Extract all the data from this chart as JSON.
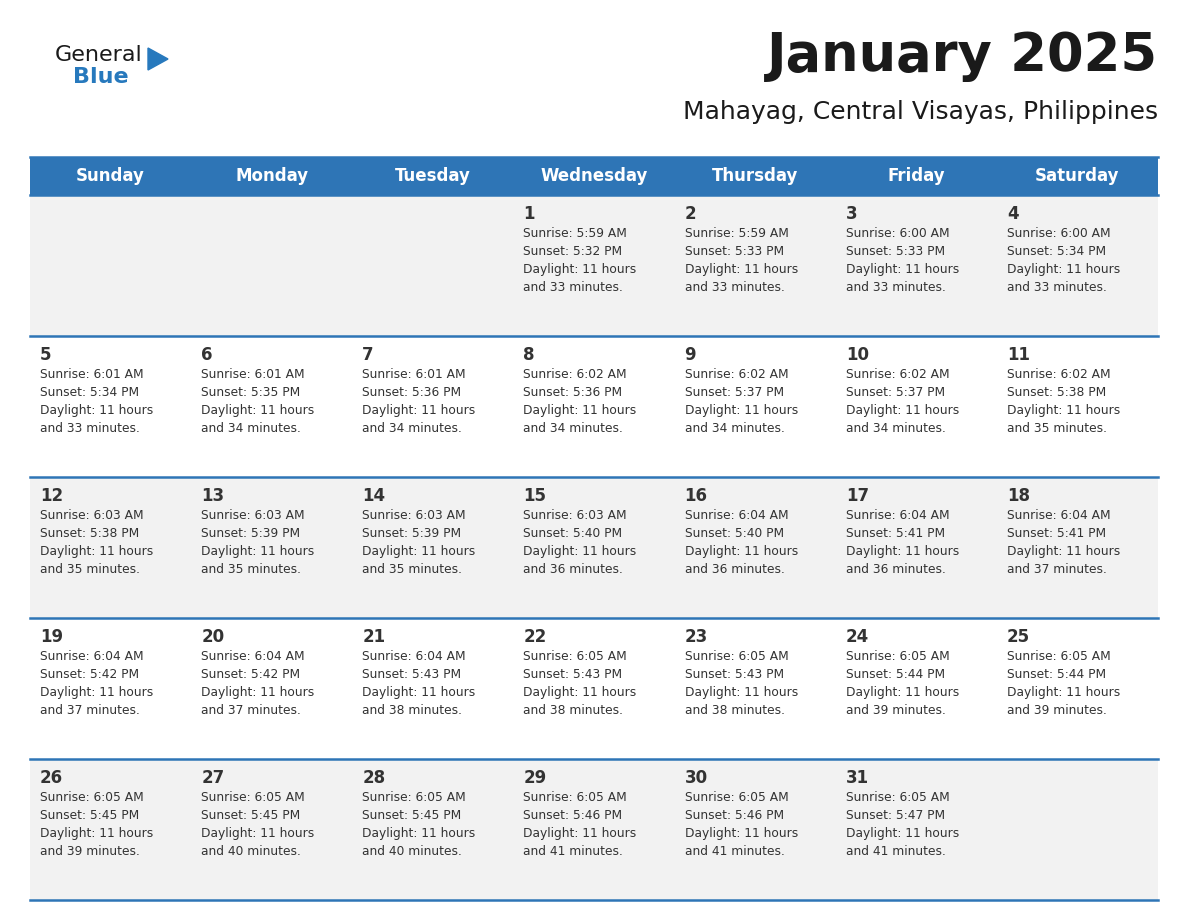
{
  "title": "January 2025",
  "subtitle": "Mahayag, Central Visayas, Philippines",
  "days_of_week": [
    "Sunday",
    "Monday",
    "Tuesday",
    "Wednesday",
    "Thursday",
    "Friday",
    "Saturday"
  ],
  "header_bg": "#2E75B6",
  "header_text_color": "#FFFFFF",
  "cell_bg_odd": "#F2F2F2",
  "cell_bg_even": "#FFFFFF",
  "separator_color": "#2E75B6",
  "title_color": "#1a1a1a",
  "subtitle_color": "#1a1a1a",
  "text_color": "#333333",
  "logo_black_color": "#1a1a1a",
  "logo_blue_color": "#2779BD",
  "calendar_data": [
    [
      null,
      null,
      null,
      {
        "day": 1,
        "sunrise": "5:59 AM",
        "sunset": "5:32 PM",
        "daylight": "11 hours and 33 minutes"
      },
      {
        "day": 2,
        "sunrise": "5:59 AM",
        "sunset": "5:33 PM",
        "daylight": "11 hours and 33 minutes"
      },
      {
        "day": 3,
        "sunrise": "6:00 AM",
        "sunset": "5:33 PM",
        "daylight": "11 hours and 33 minutes"
      },
      {
        "day": 4,
        "sunrise": "6:00 AM",
        "sunset": "5:34 PM",
        "daylight": "11 hours and 33 minutes"
      }
    ],
    [
      {
        "day": 5,
        "sunrise": "6:01 AM",
        "sunset": "5:34 PM",
        "daylight": "11 hours and 33 minutes"
      },
      {
        "day": 6,
        "sunrise": "6:01 AM",
        "sunset": "5:35 PM",
        "daylight": "11 hours and 34 minutes"
      },
      {
        "day": 7,
        "sunrise": "6:01 AM",
        "sunset": "5:36 PM",
        "daylight": "11 hours and 34 minutes"
      },
      {
        "day": 8,
        "sunrise": "6:02 AM",
        "sunset": "5:36 PM",
        "daylight": "11 hours and 34 minutes"
      },
      {
        "day": 9,
        "sunrise": "6:02 AM",
        "sunset": "5:37 PM",
        "daylight": "11 hours and 34 minutes"
      },
      {
        "day": 10,
        "sunrise": "6:02 AM",
        "sunset": "5:37 PM",
        "daylight": "11 hours and 34 minutes"
      },
      {
        "day": 11,
        "sunrise": "6:02 AM",
        "sunset": "5:38 PM",
        "daylight": "11 hours and 35 minutes"
      }
    ],
    [
      {
        "day": 12,
        "sunrise": "6:03 AM",
        "sunset": "5:38 PM",
        "daylight": "11 hours and 35 minutes"
      },
      {
        "day": 13,
        "sunrise": "6:03 AM",
        "sunset": "5:39 PM",
        "daylight": "11 hours and 35 minutes"
      },
      {
        "day": 14,
        "sunrise": "6:03 AM",
        "sunset": "5:39 PM",
        "daylight": "11 hours and 35 minutes"
      },
      {
        "day": 15,
        "sunrise": "6:03 AM",
        "sunset": "5:40 PM",
        "daylight": "11 hours and 36 minutes"
      },
      {
        "day": 16,
        "sunrise": "6:04 AM",
        "sunset": "5:40 PM",
        "daylight": "11 hours and 36 minutes"
      },
      {
        "day": 17,
        "sunrise": "6:04 AM",
        "sunset": "5:41 PM",
        "daylight": "11 hours and 36 minutes"
      },
      {
        "day": 18,
        "sunrise": "6:04 AM",
        "sunset": "5:41 PM",
        "daylight": "11 hours and 37 minutes"
      }
    ],
    [
      {
        "day": 19,
        "sunrise": "6:04 AM",
        "sunset": "5:42 PM",
        "daylight": "11 hours and 37 minutes"
      },
      {
        "day": 20,
        "sunrise": "6:04 AM",
        "sunset": "5:42 PM",
        "daylight": "11 hours and 37 minutes"
      },
      {
        "day": 21,
        "sunrise": "6:04 AM",
        "sunset": "5:43 PM",
        "daylight": "11 hours and 38 minutes"
      },
      {
        "day": 22,
        "sunrise": "6:05 AM",
        "sunset": "5:43 PM",
        "daylight": "11 hours and 38 minutes"
      },
      {
        "day": 23,
        "sunrise": "6:05 AM",
        "sunset": "5:43 PM",
        "daylight": "11 hours and 38 minutes"
      },
      {
        "day": 24,
        "sunrise": "6:05 AM",
        "sunset": "5:44 PM",
        "daylight": "11 hours and 39 minutes"
      },
      {
        "day": 25,
        "sunrise": "6:05 AM",
        "sunset": "5:44 PM",
        "daylight": "11 hours and 39 minutes"
      }
    ],
    [
      {
        "day": 26,
        "sunrise": "6:05 AM",
        "sunset": "5:45 PM",
        "daylight": "11 hours and 39 minutes"
      },
      {
        "day": 27,
        "sunrise": "6:05 AM",
        "sunset": "5:45 PM",
        "daylight": "11 hours and 40 minutes"
      },
      {
        "day": 28,
        "sunrise": "6:05 AM",
        "sunset": "5:45 PM",
        "daylight": "11 hours and 40 minutes"
      },
      {
        "day": 29,
        "sunrise": "6:05 AM",
        "sunset": "5:46 PM",
        "daylight": "11 hours and 41 minutes"
      },
      {
        "day": 30,
        "sunrise": "6:05 AM",
        "sunset": "5:46 PM",
        "daylight": "11 hours and 41 minutes"
      },
      {
        "day": 31,
        "sunrise": "6:05 AM",
        "sunset": "5:47 PM",
        "daylight": "11 hours and 41 minutes"
      },
      null
    ]
  ]
}
